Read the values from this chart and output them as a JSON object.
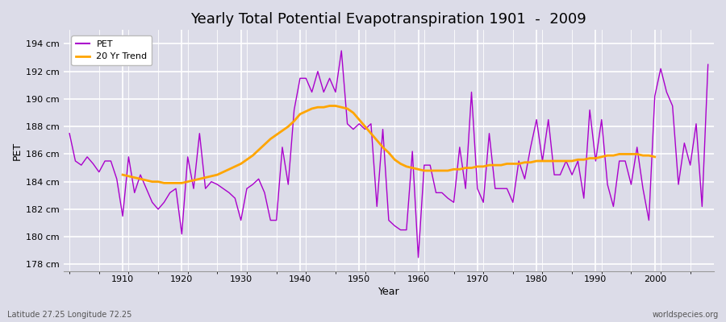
{
  "title": "Yearly Total Potential Evapotranspiration 1901  -  2009",
  "xlabel": "Year",
  "ylabel": "PET",
  "subtitle_left": "Latitude 27.25 Longitude 72.25",
  "subtitle_right": "worldspecies.org",
  "pet_color": "#AA00CC",
  "trend_color": "#FFA500",
  "background_color": "#DCDCE8",
  "fig_background": "#DCDCE8",
  "ylim": [
    177.5,
    195.0
  ],
  "yticks": [
    178,
    180,
    182,
    184,
    186,
    188,
    190,
    192,
    194
  ],
  "xlim": [
    1900,
    2010
  ],
  "xticks": [
    1910,
    1920,
    1930,
    1940,
    1950,
    1960,
    1970,
    1980,
    1990,
    2000
  ],
  "years": [
    1901,
    1902,
    1903,
    1904,
    1905,
    1906,
    1907,
    1908,
    1909,
    1910,
    1911,
    1912,
    1913,
    1914,
    1915,
    1916,
    1917,
    1918,
    1919,
    1920,
    1921,
    1922,
    1923,
    1924,
    1925,
    1926,
    1927,
    1928,
    1929,
    1930,
    1931,
    1932,
    1933,
    1934,
    1935,
    1936,
    1937,
    1938,
    1939,
    1940,
    1941,
    1942,
    1943,
    1944,
    1945,
    1946,
    1947,
    1948,
    1949,
    1950,
    1951,
    1952,
    1953,
    1954,
    1955,
    1956,
    1957,
    1958,
    1959,
    1960,
    1961,
    1962,
    1963,
    1964,
    1965,
    1966,
    1967,
    1968,
    1969,
    1970,
    1971,
    1972,
    1973,
    1974,
    1975,
    1976,
    1977,
    1978,
    1979,
    1980,
    1981,
    1982,
    1983,
    1984,
    1985,
    1986,
    1987,
    1988,
    1989,
    1990,
    1991,
    1992,
    1993,
    1994,
    1995,
    1996,
    1997,
    1998,
    1999,
    2000,
    2001,
    2002,
    2003,
    2004,
    2005,
    2006,
    2007,
    2008,
    2009
  ],
  "pet_values": [
    187.5,
    185.5,
    185.2,
    185.8,
    185.3,
    184.7,
    185.5,
    185.5,
    184.2,
    181.5,
    185.8,
    183.2,
    184.5,
    183.5,
    182.5,
    182.0,
    182.5,
    183.2,
    183.5,
    180.2,
    185.8,
    183.5,
    187.5,
    183.5,
    184.0,
    183.8,
    183.5,
    183.2,
    182.8,
    181.2,
    183.5,
    183.8,
    184.2,
    183.2,
    181.2,
    181.2,
    186.5,
    183.8,
    189.2,
    191.5,
    191.5,
    190.5,
    192.0,
    190.5,
    191.5,
    190.5,
    193.5,
    188.2,
    187.8,
    188.2,
    187.8,
    188.2,
    182.2,
    187.8,
    181.2,
    180.8,
    180.5,
    180.5,
    186.2,
    178.5,
    185.2,
    185.2,
    183.2,
    183.2,
    182.8,
    182.5,
    186.5,
    183.5,
    190.5,
    183.5,
    182.5,
    187.5,
    183.5,
    183.5,
    183.5,
    182.5,
    185.5,
    184.2,
    186.5,
    188.5,
    185.5,
    188.5,
    184.5,
    184.5,
    185.5,
    184.5,
    185.5,
    182.8,
    189.2,
    185.5,
    188.5,
    183.8,
    182.2,
    185.5,
    185.5,
    183.8,
    186.5,
    183.5,
    181.2,
    190.2,
    192.2,
    190.5,
    189.5,
    183.8,
    186.8,
    185.2,
    188.2,
    182.2,
    192.5
  ],
  "trend_values": [
    null,
    null,
    null,
    null,
    null,
    null,
    null,
    null,
    null,
    184.5,
    184.4,
    184.3,
    184.2,
    184.1,
    184.0,
    184.0,
    183.9,
    183.9,
    183.9,
    183.9,
    184.0,
    184.1,
    184.2,
    184.3,
    184.4,
    184.5,
    184.7,
    184.9,
    185.1,
    185.3,
    185.6,
    185.9,
    186.3,
    186.7,
    187.1,
    187.4,
    187.7,
    188.0,
    188.4,
    188.9,
    189.1,
    189.3,
    189.4,
    189.4,
    189.5,
    189.5,
    189.4,
    189.3,
    189.0,
    188.5,
    188.0,
    187.5,
    187.0,
    186.5,
    186.1,
    185.6,
    185.3,
    185.1,
    185.0,
    184.9,
    184.8,
    184.8,
    184.8,
    184.8,
    184.8,
    184.9,
    184.9,
    185.0,
    185.0,
    185.1,
    185.1,
    185.2,
    185.2,
    185.2,
    185.3,
    185.3,
    185.3,
    185.4,
    185.4,
    185.5,
    185.5,
    185.5,
    185.5,
    185.5,
    185.5,
    185.5,
    185.6,
    185.6,
    185.7,
    185.7,
    185.8,
    185.9,
    185.9,
    186.0,
    186.0,
    186.0,
    186.0,
    185.9,
    185.9,
    185.8,
    null,
    null,
    null,
    null,
    null,
    null,
    null,
    null,
    null
  ]
}
